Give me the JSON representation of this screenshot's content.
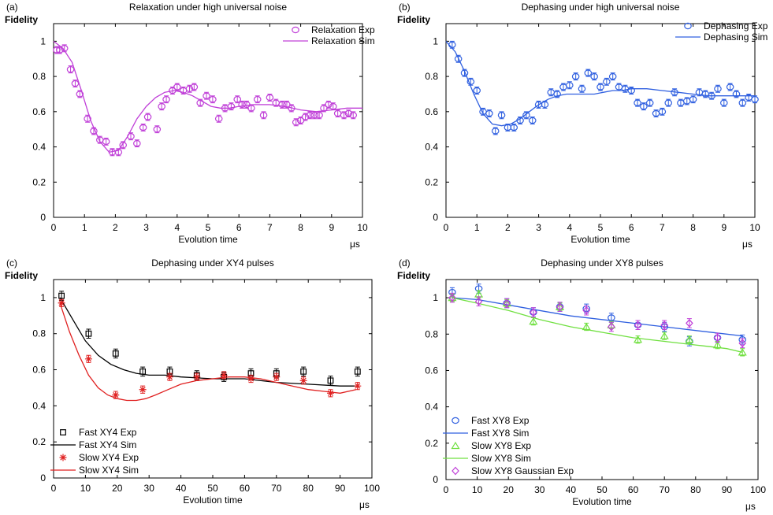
{
  "chart_data": [
    {
      "panel_label": "(a)",
      "type": "scatter",
      "title": "Relaxation under high universal noise",
      "xlabel": "Evolution time",
      "xunit": "μs",
      "ylabel": "Fidelity",
      "xlim": [
        0,
        10
      ],
      "ylim": [
        0,
        1.1
      ],
      "xticks": [
        0,
        1,
        2,
        3,
        4,
        5,
        6,
        7,
        8,
        9,
        10
      ],
      "yticks": [
        0,
        0.2,
        0.4,
        0.6,
        0.8,
        1
      ],
      "legend_position": "top-right",
      "series": [
        {
          "name": "Relaxation Exp",
          "kind": "points",
          "marker": "circle",
          "color": "#c040d8",
          "err": 0.02,
          "x": [
            0.1,
            0.2,
            0.35,
            0.55,
            0.7,
            0.85,
            1.1,
            1.3,
            1.5,
            1.7,
            1.9,
            2.1,
            2.25,
            2.5,
            2.7,
            2.9,
            3.05,
            3.35,
            3.5,
            3.65,
            3.85,
            4.0,
            4.2,
            4.4,
            4.55,
            4.75,
            4.95,
            5.15,
            5.35,
            5.55,
            5.75,
            5.95,
            6.1,
            6.25,
            6.4,
            6.6,
            6.8,
            7.0,
            7.2,
            7.4,
            7.55,
            7.7,
            7.85,
            8.0,
            8.15,
            8.3,
            8.45,
            8.6,
            8.75,
            8.9,
            9.05,
            9.2,
            9.4,
            9.55,
            9.7
          ],
          "y": [
            0.95,
            0.95,
            0.96,
            0.84,
            0.76,
            0.7,
            0.56,
            0.49,
            0.44,
            0.43,
            0.37,
            0.37,
            0.41,
            0.46,
            0.42,
            0.51,
            0.57,
            0.5,
            0.63,
            0.67,
            0.72,
            0.74,
            0.72,
            0.73,
            0.74,
            0.65,
            0.69,
            0.67,
            0.56,
            0.62,
            0.63,
            0.67,
            0.64,
            0.64,
            0.62,
            0.67,
            0.58,
            0.68,
            0.65,
            0.64,
            0.64,
            0.62,
            0.54,
            0.55,
            0.57,
            0.58,
            0.58,
            0.58,
            0.62,
            0.64,
            0.63,
            0.59,
            0.58,
            0.59,
            0.58
          ]
        },
        {
          "name": "Relaxation Sim",
          "kind": "line",
          "color": "#c040d8",
          "x": [
            0,
            0.3,
            0.6,
            0.9,
            1.2,
            1.5,
            1.8,
            2.1,
            2.4,
            2.7,
            3.0,
            3.3,
            3.6,
            3.9,
            4.2,
            4.5,
            4.8,
            5.1,
            5.4,
            5.7,
            6.0,
            6.5,
            7.0,
            7.5,
            8.0,
            8.5,
            9.0,
            9.5,
            10
          ],
          "y": [
            1.0,
            0.96,
            0.88,
            0.72,
            0.55,
            0.43,
            0.37,
            0.38,
            0.46,
            0.56,
            0.63,
            0.68,
            0.71,
            0.72,
            0.71,
            0.69,
            0.66,
            0.63,
            0.62,
            0.62,
            0.63,
            0.64,
            0.64,
            0.63,
            0.61,
            0.6,
            0.61,
            0.62,
            0.62
          ]
        }
      ]
    },
    {
      "panel_label": "(b)",
      "type": "scatter",
      "title": "Dephasing under high universal noise",
      "xlabel": "Evolution time",
      "xunit": "μs",
      "ylabel": "Fidelity",
      "xlim": [
        0,
        10
      ],
      "ylim": [
        0,
        1.1
      ],
      "xticks": [
        0,
        1,
        2,
        3,
        4,
        5,
        6,
        7,
        8,
        9,
        10
      ],
      "yticks": [
        0,
        0.2,
        0.4,
        0.6,
        0.8,
        1
      ],
      "legend_position": "top-right",
      "series": [
        {
          "name": "Dephasing Exp",
          "kind": "points",
          "marker": "circle",
          "color": "#3060e0",
          "err": 0.02,
          "x": [
            0.2,
            0.4,
            0.6,
            0.8,
            1.0,
            1.2,
            1.4,
            1.6,
            1.8,
            2.0,
            2.2,
            2.4,
            2.6,
            2.8,
            3.0,
            3.2,
            3.4,
            3.6,
            3.8,
            4.0,
            4.2,
            4.4,
            4.6,
            4.8,
            5.0,
            5.2,
            5.4,
            5.6,
            5.8,
            6.0,
            6.2,
            6.4,
            6.6,
            6.8,
            7.0,
            7.2,
            7.4,
            7.6,
            7.8,
            8.0,
            8.2,
            8.4,
            8.6,
            8.8,
            9.0,
            9.2,
            9.4,
            9.6,
            9.8,
            10.0
          ],
          "y": [
            0.98,
            0.9,
            0.82,
            0.77,
            0.72,
            0.6,
            0.59,
            0.49,
            0.58,
            0.51,
            0.51,
            0.55,
            0.58,
            0.55,
            0.64,
            0.64,
            0.71,
            0.7,
            0.74,
            0.75,
            0.8,
            0.73,
            0.82,
            0.8,
            0.74,
            0.77,
            0.8,
            0.74,
            0.73,
            0.72,
            0.65,
            0.63,
            0.65,
            0.59,
            0.6,
            0.65,
            0.71,
            0.65,
            0.66,
            0.67,
            0.71,
            0.7,
            0.69,
            0.73,
            0.65,
            0.74,
            0.7,
            0.65,
            0.68,
            0.67
          ]
        },
        {
          "name": "Dephasing Sim",
          "kind": "line",
          "color": "#3060e0",
          "x": [
            0,
            0.3,
            0.6,
            0.9,
            1.2,
            1.5,
            1.8,
            2.1,
            2.4,
            2.7,
            3.0,
            3.3,
            3.6,
            3.9,
            4.2,
            4.5,
            4.8,
            5.1,
            5.4,
            5.7,
            6.0,
            6.5,
            7.0,
            7.5,
            8.0,
            8.5,
            9.0,
            9.5,
            10
          ],
          "y": [
            1.0,
            0.94,
            0.83,
            0.7,
            0.59,
            0.53,
            0.52,
            0.53,
            0.56,
            0.6,
            0.64,
            0.67,
            0.69,
            0.7,
            0.7,
            0.7,
            0.7,
            0.71,
            0.72,
            0.72,
            0.73,
            0.73,
            0.72,
            0.71,
            0.7,
            0.69,
            0.69,
            0.69,
            0.69
          ]
        }
      ]
    },
    {
      "panel_label": "(c)",
      "type": "scatter",
      "title": "Dephasing under XY4 pulses",
      "xlabel": "Evolution time",
      "xunit": "μs",
      "ylabel": "Fidelity",
      "xlim": [
        0,
        100
      ],
      "ylim": [
        0,
        1.1
      ],
      "xticks": [
        0,
        10,
        20,
        30,
        40,
        50,
        60,
        70,
        80,
        90,
        100
      ],
      "yticks": [
        0,
        0.2,
        0.4,
        0.6,
        0.8,
        1
      ],
      "legend_position": "bottom-left",
      "series": [
        {
          "name": "Fast XY4 Exp",
          "kind": "points",
          "marker": "square",
          "color": "#000000",
          "err": 0.025,
          "x": [
            2.5,
            11,
            19.5,
            28,
            36.5,
            45,
            53.5,
            62,
            70,
            78.5,
            87,
            95.5
          ],
          "y": [
            1.01,
            0.8,
            0.69,
            0.59,
            0.59,
            0.57,
            0.56,
            0.58,
            0.58,
            0.59,
            0.54,
            0.59
          ]
        },
        {
          "name": "Fast XY4 Sim",
          "kind": "line",
          "color": "#000000",
          "x": [
            2,
            6,
            10,
            14,
            18,
            22,
            26,
            30,
            35,
            40,
            50,
            60,
            70,
            80,
            90,
            95
          ],
          "y": [
            1.0,
            0.88,
            0.76,
            0.68,
            0.63,
            0.6,
            0.58,
            0.57,
            0.57,
            0.56,
            0.55,
            0.55,
            0.53,
            0.52,
            0.51,
            0.51
          ]
        },
        {
          "name": "Slow XY4 Exp",
          "kind": "points",
          "marker": "star",
          "color": "#e02020",
          "err": 0.02,
          "x": [
            2.5,
            11,
            19.5,
            28,
            36.5,
            45,
            53.5,
            62,
            70,
            78.5,
            87,
            95.5
          ],
          "y": [
            0.97,
            0.66,
            0.46,
            0.49,
            0.56,
            0.56,
            0.57,
            0.55,
            0.56,
            0.54,
            0.47,
            0.51
          ]
        },
        {
          "name": "Slow XY4 Sim",
          "kind": "line",
          "color": "#e02020",
          "x": [
            2,
            5,
            8,
            11,
            14,
            17,
            20,
            23,
            26,
            29,
            32,
            36,
            40,
            45,
            50,
            55,
            60,
            65,
            70,
            75,
            80,
            85,
            90,
            95
          ],
          "y": [
            0.97,
            0.81,
            0.68,
            0.57,
            0.5,
            0.46,
            0.44,
            0.43,
            0.43,
            0.44,
            0.46,
            0.49,
            0.52,
            0.54,
            0.55,
            0.56,
            0.56,
            0.55,
            0.53,
            0.51,
            0.49,
            0.48,
            0.47,
            0.49
          ]
        }
      ]
    },
    {
      "panel_label": "(d)",
      "type": "scatter",
      "title": "Dephasing under XY8 pulses",
      "xlabel": "Evolution time",
      "xunit": "μs",
      "ylabel": "Fidelity",
      "xlim": [
        0,
        100
      ],
      "ylim": [
        0,
        1.1
      ],
      "xticks": [
        0,
        10,
        20,
        30,
        40,
        50,
        60,
        70,
        80,
        90,
        100
      ],
      "yticks": [
        0,
        0.2,
        0.4,
        0.6,
        0.8,
        1
      ],
      "legend_position": "bottom-left",
      "series": [
        {
          "name": "Fast XY8 Exp",
          "kind": "points",
          "marker": "circle",
          "color": "#3060e0",
          "err": 0.025,
          "x": [
            2,
            10.5,
            19.5,
            28,
            36.5,
            45,
            53,
            61.5,
            70,
            78,
            87,
            95
          ],
          "y": [
            1.03,
            1.05,
            0.97,
            0.92,
            0.95,
            0.94,
            0.89,
            0.85,
            0.84,
            0.76,
            0.78,
            0.77
          ]
        },
        {
          "name": "Fast XY8 Sim",
          "kind": "line",
          "color": "#3060e0",
          "x": [
            2,
            10,
            20,
            30,
            40,
            50,
            60,
            70,
            80,
            90,
            95
          ],
          "y": [
            1.0,
            0.99,
            0.96,
            0.93,
            0.9,
            0.88,
            0.86,
            0.84,
            0.82,
            0.8,
            0.79
          ]
        },
        {
          "name": "Slow XY8 Exp",
          "kind": "points",
          "marker": "triangle",
          "color": "#70e040",
          "err": 0.02,
          "x": [
            2,
            10.5,
            19.5,
            28,
            36.5,
            45,
            53,
            61.5,
            70,
            78,
            87,
            95
          ],
          "y": [
            1.0,
            1.02,
            0.97,
            0.87,
            0.95,
            0.84,
            0.85,
            0.77,
            0.79,
            0.77,
            0.74,
            0.7
          ]
        },
        {
          "name": "Slow XY8 Sim",
          "kind": "line",
          "color": "#70e040",
          "x": [
            2,
            10,
            20,
            30,
            40,
            50,
            60,
            70,
            80,
            90,
            95
          ],
          "y": [
            1.0,
            0.97,
            0.93,
            0.88,
            0.84,
            0.81,
            0.78,
            0.76,
            0.74,
            0.72,
            0.7
          ]
        },
        {
          "name": "Slow XY8 Gaussian Exp",
          "kind": "points",
          "marker": "diamond",
          "color": "#c040d8",
          "err": 0.025,
          "x": [
            2,
            10.5,
            19.5,
            28,
            36.5,
            45,
            53,
            61.5,
            70,
            78,
            87,
            95
          ],
          "y": [
            1.0,
            0.98,
            0.97,
            0.92,
            0.95,
            0.93,
            0.84,
            0.85,
            0.85,
            0.86,
            0.78,
            0.75
          ]
        }
      ]
    }
  ]
}
